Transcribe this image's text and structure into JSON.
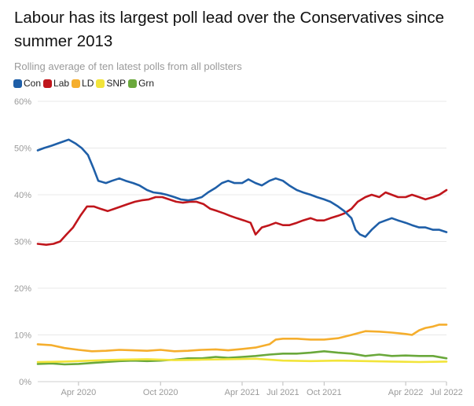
{
  "chart_data": {
    "type": "line",
    "title": "Labour has its largest poll lead over the Conservatives since summer 2013",
    "subtitle": "Rolling average of ten latest polls from all pollsters",
    "xlabel": "",
    "ylabel": "",
    "y_ticks": [
      "0%",
      "10%",
      "20%",
      "30%",
      "40%",
      "50%",
      "60%"
    ],
    "ylim": [
      0,
      60
    ],
    "x_range": [
      "2020-01-01",
      "2022-07-01"
    ],
    "x_ticks": [
      {
        "date": "2020-04-01",
        "label": "Apr 2020"
      },
      {
        "date": "2020-10-01",
        "label": "Oct 2020"
      },
      {
        "date": "2021-04-01",
        "label": "Apr 2021"
      },
      {
        "date": "2021-07-01",
        "label": "Jul 2021"
      },
      {
        "date": "2021-10-01",
        "label": "Oct 2021"
      },
      {
        "date": "2022-04-01",
        "label": "Apr 2022"
      },
      {
        "date": "2022-07-01",
        "label": "Jul 2022"
      }
    ],
    "grid": true,
    "legend_position": "top-left",
    "series": [
      {
        "name": "Con",
        "color": "#1f5fa8",
        "points": [
          [
            "2020-01-01",
            49.5
          ],
          [
            "2020-01-15",
            50.0
          ],
          [
            "2020-02-01",
            50.5
          ],
          [
            "2020-02-15",
            51.0
          ],
          [
            "2020-03-01",
            51.5
          ],
          [
            "2020-03-10",
            51.8
          ],
          [
            "2020-03-25",
            51.0
          ],
          [
            "2020-04-08",
            50.0
          ],
          [
            "2020-04-22",
            48.5
          ],
          [
            "2020-05-05",
            45.5
          ],
          [
            "2020-05-15",
            43.0
          ],
          [
            "2020-06-01",
            42.5
          ],
          [
            "2020-06-15",
            43.0
          ],
          [
            "2020-07-01",
            43.5
          ],
          [
            "2020-07-15",
            43.0
          ],
          [
            "2020-08-01",
            42.5
          ],
          [
            "2020-08-15",
            42.0
          ],
          [
            "2020-09-01",
            41.0
          ],
          [
            "2020-09-15",
            40.5
          ],
          [
            "2020-10-01",
            40.3
          ],
          [
            "2020-10-15",
            40.0
          ],
          [
            "2020-11-01",
            39.5
          ],
          [
            "2020-11-15",
            39.0
          ],
          [
            "2020-12-01",
            38.8
          ],
          [
            "2020-12-15",
            39.0
          ],
          [
            "2021-01-01",
            39.5
          ],
          [
            "2021-01-15",
            40.5
          ],
          [
            "2021-02-01",
            41.5
          ],
          [
            "2021-02-15",
            42.5
          ],
          [
            "2021-03-01",
            43.0
          ],
          [
            "2021-03-15",
            42.5
          ],
          [
            "2021-04-01",
            42.5
          ],
          [
            "2021-04-15",
            43.3
          ],
          [
            "2021-05-01",
            42.5
          ],
          [
            "2021-05-15",
            42.0
          ],
          [
            "2021-06-01",
            43.0
          ],
          [
            "2021-06-15",
            43.5
          ],
          [
            "2021-07-01",
            43.0
          ],
          [
            "2021-07-15",
            42.0
          ],
          [
            "2021-08-01",
            41.0
          ],
          [
            "2021-08-15",
            40.5
          ],
          [
            "2021-09-01",
            40.0
          ],
          [
            "2021-09-15",
            39.5
          ],
          [
            "2021-10-01",
            39.0
          ],
          [
            "2021-10-15",
            38.5
          ],
          [
            "2021-11-01",
            37.5
          ],
          [
            "2021-11-15",
            36.5
          ],
          [
            "2021-12-01",
            35.0
          ],
          [
            "2021-12-10",
            32.5
          ],
          [
            "2021-12-20",
            31.5
          ],
          [
            "2022-01-01",
            31.0
          ],
          [
            "2022-01-15",
            32.5
          ],
          [
            "2022-02-01",
            34.0
          ],
          [
            "2022-02-15",
            34.5
          ],
          [
            "2022-03-01",
            35.0
          ],
          [
            "2022-03-15",
            34.5
          ],
          [
            "2022-04-01",
            34.0
          ],
          [
            "2022-04-15",
            33.5
          ],
          [
            "2022-05-01",
            33.0
          ],
          [
            "2022-05-15",
            33.0
          ],
          [
            "2022-06-01",
            32.5
          ],
          [
            "2022-06-15",
            32.5
          ],
          [
            "2022-07-01",
            32.0
          ]
        ]
      },
      {
        "name": "Lab",
        "color": "#c0161c",
        "points": [
          [
            "2020-01-01",
            29.5
          ],
          [
            "2020-01-20",
            29.3
          ],
          [
            "2020-02-05",
            29.5
          ],
          [
            "2020-02-20",
            30.0
          ],
          [
            "2020-03-05",
            31.5
          ],
          [
            "2020-03-20",
            33.0
          ],
          [
            "2020-04-05",
            35.5
          ],
          [
            "2020-04-20",
            37.5
          ],
          [
            "2020-05-05",
            37.5
          ],
          [
            "2020-05-20",
            37.0
          ],
          [
            "2020-06-05",
            36.5
          ],
          [
            "2020-06-20",
            37.0
          ],
          [
            "2020-07-05",
            37.5
          ],
          [
            "2020-07-20",
            38.0
          ],
          [
            "2020-08-05",
            38.5
          ],
          [
            "2020-08-20",
            38.8
          ],
          [
            "2020-09-05",
            39.0
          ],
          [
            "2020-09-20",
            39.5
          ],
          [
            "2020-10-05",
            39.5
          ],
          [
            "2020-10-20",
            39.0
          ],
          [
            "2020-11-05",
            38.5
          ],
          [
            "2020-11-20",
            38.3
          ],
          [
            "2020-12-05",
            38.5
          ],
          [
            "2020-12-20",
            38.5
          ],
          [
            "2021-01-05",
            38.0
          ],
          [
            "2021-01-20",
            37.0
          ],
          [
            "2021-02-05",
            36.5
          ],
          [
            "2021-02-20",
            36.0
          ],
          [
            "2021-03-05",
            35.5
          ],
          [
            "2021-03-20",
            35.0
          ],
          [
            "2021-04-05",
            34.5
          ],
          [
            "2021-04-20",
            34.0
          ],
          [
            "2021-05-01",
            31.5
          ],
          [
            "2021-05-15",
            33.0
          ],
          [
            "2021-06-01",
            33.5
          ],
          [
            "2021-06-15",
            34.0
          ],
          [
            "2021-07-01",
            33.5
          ],
          [
            "2021-07-15",
            33.5
          ],
          [
            "2021-08-01",
            34.0
          ],
          [
            "2021-08-15",
            34.5
          ],
          [
            "2021-09-01",
            35.0
          ],
          [
            "2021-09-15",
            34.5
          ],
          [
            "2021-10-01",
            34.5
          ],
          [
            "2021-10-15",
            35.0
          ],
          [
            "2021-11-01",
            35.5
          ],
          [
            "2021-11-15",
            36.0
          ],
          [
            "2021-12-01",
            37.0
          ],
          [
            "2021-12-15",
            38.5
          ],
          [
            "2022-01-01",
            39.5
          ],
          [
            "2022-01-15",
            40.0
          ],
          [
            "2022-02-01",
            39.5
          ],
          [
            "2022-02-15",
            40.5
          ],
          [
            "2022-03-01",
            40.0
          ],
          [
            "2022-03-15",
            39.5
          ],
          [
            "2022-04-01",
            39.5
          ],
          [
            "2022-04-15",
            40.0
          ],
          [
            "2022-05-01",
            39.5
          ],
          [
            "2022-05-15",
            39.0
          ],
          [
            "2022-06-01",
            39.5
          ],
          [
            "2022-06-15",
            40.0
          ],
          [
            "2022-07-01",
            41.0
          ]
        ]
      },
      {
        "name": "LD",
        "color": "#f5ae2d",
        "points": [
          [
            "2020-01-01",
            8.0
          ],
          [
            "2020-02-01",
            7.8
          ],
          [
            "2020-03-01",
            7.2
          ],
          [
            "2020-04-01",
            6.8
          ],
          [
            "2020-05-01",
            6.5
          ],
          [
            "2020-06-01",
            6.6
          ],
          [
            "2020-07-01",
            6.8
          ],
          [
            "2020-08-01",
            6.7
          ],
          [
            "2020-09-01",
            6.6
          ],
          [
            "2020-10-01",
            6.8
          ],
          [
            "2020-11-01",
            6.5
          ],
          [
            "2020-12-01",
            6.6
          ],
          [
            "2021-01-01",
            6.8
          ],
          [
            "2021-02-01",
            6.9
          ],
          [
            "2021-03-01",
            6.7
          ],
          [
            "2021-04-01",
            7.0
          ],
          [
            "2021-05-01",
            7.3
          ],
          [
            "2021-06-01",
            8.0
          ],
          [
            "2021-06-15",
            9.0
          ],
          [
            "2021-07-01",
            9.2
          ],
          [
            "2021-08-01",
            9.2
          ],
          [
            "2021-09-01",
            9.0
          ],
          [
            "2021-10-01",
            9.0
          ],
          [
            "2021-11-01",
            9.3
          ],
          [
            "2021-12-01",
            10.0
          ],
          [
            "2022-01-01",
            10.8
          ],
          [
            "2022-02-01",
            10.7
          ],
          [
            "2022-03-01",
            10.5
          ],
          [
            "2022-04-01",
            10.2
          ],
          [
            "2022-04-15",
            10.0
          ],
          [
            "2022-05-01",
            11.0
          ],
          [
            "2022-05-15",
            11.5
          ],
          [
            "2022-06-01",
            11.8
          ],
          [
            "2022-06-15",
            12.2
          ],
          [
            "2022-07-01",
            12.2
          ]
        ]
      },
      {
        "name": "SNP",
        "color": "#f2e43a",
        "points": [
          [
            "2020-01-01",
            4.2
          ],
          [
            "2020-03-01",
            4.3
          ],
          [
            "2020-05-01",
            4.5
          ],
          [
            "2020-07-01",
            4.7
          ],
          [
            "2020-09-01",
            4.8
          ],
          [
            "2020-11-01",
            4.6
          ],
          [
            "2021-01-01",
            4.7
          ],
          [
            "2021-03-01",
            4.8
          ],
          [
            "2021-05-01",
            4.9
          ],
          [
            "2021-07-01",
            4.5
          ],
          [
            "2021-09-01",
            4.4
          ],
          [
            "2021-11-01",
            4.5
          ],
          [
            "2022-01-01",
            4.4
          ],
          [
            "2022-03-01",
            4.3
          ],
          [
            "2022-05-01",
            4.2
          ],
          [
            "2022-07-01",
            4.3
          ]
        ]
      },
      {
        "name": "Grn",
        "color": "#6aa83b",
        "points": [
          [
            "2020-01-01",
            3.8
          ],
          [
            "2020-02-01",
            3.9
          ],
          [
            "2020-03-01",
            3.7
          ],
          [
            "2020-04-01",
            3.8
          ],
          [
            "2020-05-01",
            4.0
          ],
          [
            "2020-06-01",
            4.2
          ],
          [
            "2020-07-01",
            4.4
          ],
          [
            "2020-08-01",
            4.5
          ],
          [
            "2020-09-01",
            4.4
          ],
          [
            "2020-10-01",
            4.5
          ],
          [
            "2020-11-01",
            4.7
          ],
          [
            "2020-12-01",
            5.0
          ],
          [
            "2021-01-01",
            5.0
          ],
          [
            "2021-02-01",
            5.3
          ],
          [
            "2021-03-01",
            5.1
          ],
          [
            "2021-04-01",
            5.3
          ],
          [
            "2021-05-01",
            5.5
          ],
          [
            "2021-06-01",
            5.8
          ],
          [
            "2021-07-01",
            6.0
          ],
          [
            "2021-08-01",
            6.0
          ],
          [
            "2021-09-01",
            6.2
          ],
          [
            "2021-10-01",
            6.5
          ],
          [
            "2021-11-01",
            6.2
          ],
          [
            "2021-12-01",
            6.0
          ],
          [
            "2022-01-01",
            5.5
          ],
          [
            "2022-02-01",
            5.8
          ],
          [
            "2022-03-01",
            5.5
          ],
          [
            "2022-04-01",
            5.6
          ],
          [
            "2022-05-01",
            5.5
          ],
          [
            "2022-06-01",
            5.5
          ],
          [
            "2022-07-01",
            5.0
          ]
        ]
      }
    ]
  }
}
